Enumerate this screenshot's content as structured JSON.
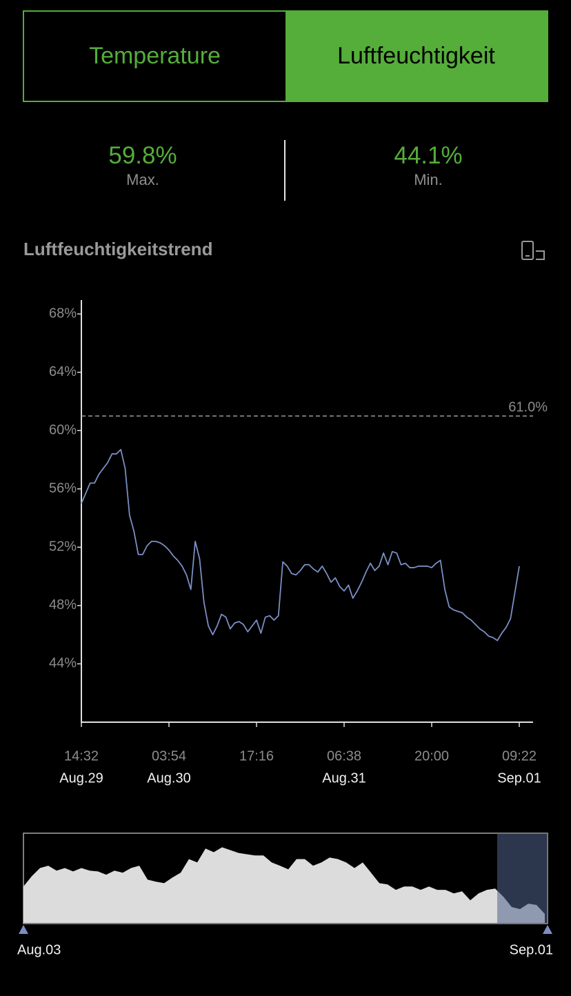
{
  "tabs": [
    {
      "label": "Temperature",
      "active": false
    },
    {
      "label": "Luftfeuchtigkeit",
      "active": true
    }
  ],
  "stats": [
    {
      "value": "59.8%",
      "label": "Max."
    },
    {
      "value": "44.1%",
      "label": "Min."
    }
  ],
  "section_title": "Luftfeuchtigkeitstrend",
  "chart_data": {
    "type": "line",
    "color": "#7b8fc4",
    "grid": false,
    "categories": [
      "14:32",
      null,
      null,
      null,
      null,
      null,
      null,
      null,
      null,
      null,
      null,
      null,
      null,
      null,
      null,
      null,
      null,
      null,
      null,
      null,
      "03:54",
      null,
      null,
      null,
      null,
      null,
      null,
      null,
      null,
      null,
      null,
      null,
      null,
      null,
      null,
      null,
      null,
      null,
      null,
      null,
      "17:16",
      null,
      null,
      null,
      null,
      null,
      null,
      null,
      null,
      null,
      null,
      null,
      null,
      null,
      null,
      null,
      null,
      null,
      null,
      null,
      "06:38",
      null,
      null,
      null,
      null,
      null,
      null,
      null,
      null,
      null,
      null,
      null,
      null,
      null,
      null,
      null,
      null,
      null,
      null,
      null,
      "20:00",
      null,
      null,
      null,
      null,
      null,
      null,
      null,
      null,
      null,
      null,
      null,
      null,
      null,
      null,
      null,
      null,
      null,
      null,
      null,
      "09:22"
    ],
    "category_dates": [
      "Aug.29",
      null,
      null,
      null,
      null,
      null,
      null,
      null,
      null,
      null,
      null,
      null,
      null,
      null,
      null,
      null,
      null,
      null,
      null,
      null,
      "Aug.30",
      null,
      null,
      null,
      null,
      null,
      null,
      null,
      null,
      null,
      null,
      null,
      null,
      null,
      null,
      null,
      null,
      null,
      null,
      null,
      null,
      null,
      null,
      null,
      null,
      null,
      null,
      null,
      null,
      null,
      null,
      null,
      null,
      null,
      null,
      null,
      null,
      null,
      null,
      null,
      "Aug.31",
      null,
      null,
      null,
      null,
      null,
      null,
      null,
      null,
      null,
      null,
      null,
      null,
      null,
      null,
      null,
      null,
      null,
      null,
      null,
      null,
      null,
      null,
      null,
      null,
      null,
      null,
      null,
      null,
      null,
      null,
      null,
      null,
      null,
      null,
      null,
      null,
      null,
      null,
      null,
      "Sep.01"
    ],
    "values": [
      55.0,
      55.7,
      56.4,
      56.4,
      57.0,
      57.4,
      57.8,
      58.4,
      58.4,
      58.7,
      57.4,
      54.2,
      53.1,
      51.5,
      51.5,
      52.1,
      52.4,
      52.4,
      52.3,
      52.1,
      51.8,
      51.4,
      51.1,
      50.7,
      50.1,
      49.1,
      52.4,
      51.2,
      48.2,
      46.6,
      46.0,
      46.6,
      47.4,
      47.2,
      46.4,
      46.8,
      46.9,
      46.7,
      46.2,
      46.6,
      47.0,
      46.1,
      47.2,
      47.3,
      47.0,
      47.3,
      51.0,
      50.7,
      50.2,
      50.1,
      50.4,
      50.8,
      50.8,
      50.5,
      50.3,
      50.7,
      50.2,
      49.6,
      49.9,
      49.3,
      49.0,
      49.4,
      48.5,
      49.0,
      49.6,
      50.3,
      50.9,
      50.4,
      50.7,
      51.6,
      50.8,
      51.7,
      51.6,
      50.8,
      50.9,
      50.6,
      50.6,
      50.7,
      50.7,
      50.7,
      50.6,
      50.9,
      51.1,
      49.1,
      47.9,
      47.7,
      47.6,
      47.5,
      47.2,
      47.0,
      46.7,
      46.4,
      46.2,
      45.9,
      45.8,
      45.6,
      46.1,
      46.5,
      47.1,
      48.9,
      50.7
    ],
    "ylim": [
      40,
      69
    ],
    "yticks": [
      {
        "value": 44,
        "label": "44%"
      },
      {
        "value": 48,
        "label": "48%"
      },
      {
        "value": 52,
        "label": "52%"
      },
      {
        "value": 56,
        "label": "56%"
      },
      {
        "value": 60,
        "label": "60%"
      },
      {
        "value": 64,
        "label": "64%"
      },
      {
        "value": 68,
        "label": "68%"
      }
    ],
    "reference_line": {
      "value": 61,
      "label": "61.0%"
    }
  },
  "overview": {
    "type": "area",
    "color": "#dcdcdc",
    "values": [
      56.2,
      60.2,
      63.4,
      64.3,
      62.4,
      63.4,
      62.1,
      63.4,
      62.4,
      62.1,
      60.8,
      62.4,
      61.6,
      63.4,
      64.3,
      58.9,
      58.1,
      57.5,
      59.7,
      61.6,
      66.9,
      65.6,
      71.0,
      69.6,
      71.5,
      70.4,
      69.3,
      68.8,
      68.3,
      68.3,
      65.6,
      64.3,
      62.9,
      66.9,
      66.9,
      64.3,
      65.6,
      67.5,
      66.9,
      65.6,
      63.4,
      65.6,
      61.6,
      57.5,
      57.0,
      54.9,
      56.2,
      56.2,
      54.9,
      56.2,
      54.9,
      54.9,
      53.5,
      54.3,
      50.8,
      53.5,
      54.9,
      55.4,
      52.2,
      48.2,
      47.4,
      49.5,
      49.0,
      45.5
    ],
    "ylim": [
      42,
      77
    ],
    "start_label": "Aug.03",
    "end_label": "Sep.01"
  }
}
